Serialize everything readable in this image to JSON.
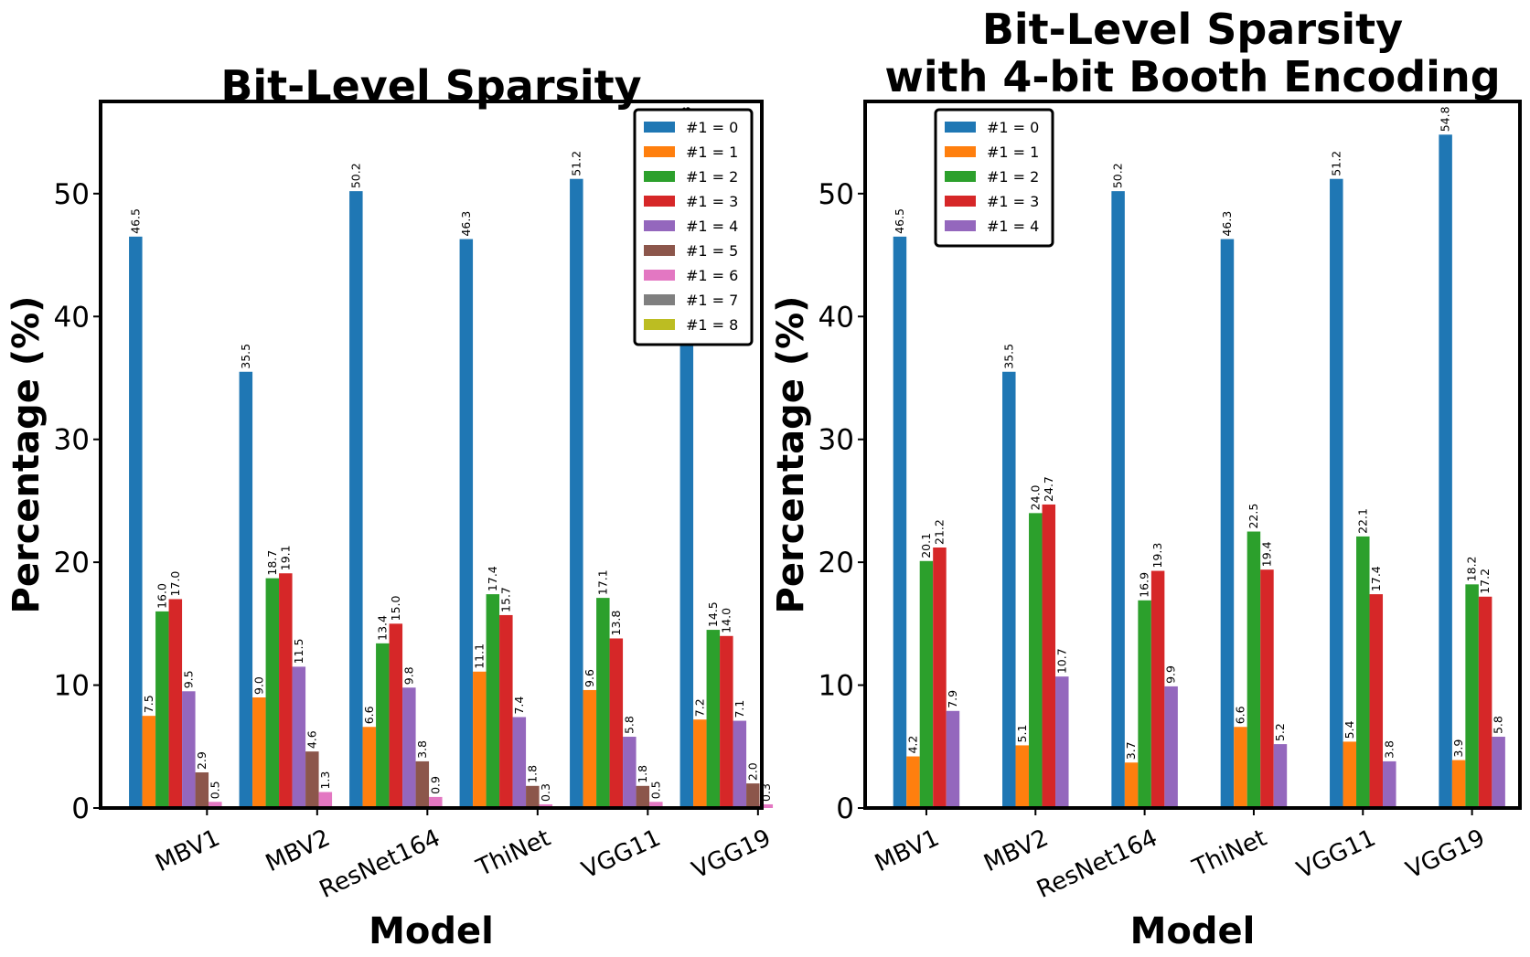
{
  "chart_data": [
    {
      "type": "bar",
      "title": [
        "Bit-Level Sparsity"
      ],
      "xlabel": "Model",
      "ylabel": "Percentage (%)",
      "ylim": [
        0,
        57.5
      ],
      "yticks": [
        0,
        10,
        20,
        30,
        40,
        50
      ],
      "grid": false,
      "legend_position": "top-right",
      "categories": [
        "MBV1",
        "MBV2",
        "ResNet164",
        "ThiNet",
        "VGG11",
        "VGG19"
      ],
      "series": [
        {
          "name": "#1 = 0",
          "color": "#1f77b4",
          "values": [
            46.5,
            35.5,
            50.2,
            46.3,
            51.2,
            54.8
          ],
          "labels": [
            "46.5",
            "35.5",
            "50.2",
            "46.3",
            "51.2",
            "54.8"
          ]
        },
        {
          "name": "#1 = 1",
          "color": "#ff7f0e",
          "values": [
            7.5,
            9.0,
            6.6,
            11.1,
            9.6,
            7.2
          ],
          "labels": [
            "7.5",
            "9.0",
            "6.6",
            "11.1",
            "9.6",
            "7.2"
          ]
        },
        {
          "name": "#1 = 2",
          "color": "#2ca02c",
          "values": [
            16.0,
            18.7,
            13.4,
            17.4,
            17.1,
            14.5
          ],
          "labels": [
            "16.0",
            "18.7",
            "13.4",
            "17.4",
            "17.1",
            "14.5"
          ]
        },
        {
          "name": "#1 = 3",
          "color": "#d62728",
          "values": [
            17.0,
            19.1,
            15.0,
            15.7,
            13.8,
            14.0
          ],
          "labels": [
            "17.0",
            "19.1",
            "15.0",
            "15.7",
            "13.8",
            "14.0"
          ]
        },
        {
          "name": "#1 = 4",
          "color": "#9467bd",
          "values": [
            9.5,
            11.5,
            9.8,
            7.4,
            5.8,
            7.1
          ],
          "labels": [
            "9.5",
            "11.5",
            "9.8",
            "7.4",
            "5.8",
            "7.1"
          ]
        },
        {
          "name": "#1 = 5",
          "color": "#8c564b",
          "values": [
            2.9,
            4.6,
            3.8,
            1.8,
            1.8,
            2.0
          ],
          "labels": [
            "2.9",
            "4.6",
            "3.8",
            "1.8",
            "1.8",
            "2.0"
          ]
        },
        {
          "name": "#1 = 6",
          "color": "#e377c2",
          "values": [
            0.5,
            1.3,
            0.9,
            0.3,
            0.5,
            0.3
          ],
          "labels": [
            "0.5",
            "1.3",
            "0.9",
            "0.3",
            "0.5",
            "0.3"
          ]
        },
        {
          "name": "#1 = 7",
          "color": "#7f7f7f",
          "values": [
            0,
            0,
            0,
            0,
            0,
            0
          ],
          "labels": [
            "",
            "",
            "",
            "",
            "",
            ""
          ]
        },
        {
          "name": "#1 = 8",
          "color": "#bcbd22",
          "values": [
            0,
            0,
            0,
            0,
            0,
            0
          ],
          "labels": [
            "",
            "",
            "",
            "",
            "",
            ""
          ]
        }
      ]
    },
    {
      "type": "bar",
      "title": [
        "Bit-Level Sparsity",
        "with 4-bit Booth Encoding"
      ],
      "xlabel": "Model",
      "ylabel": "Percentage (%)",
      "ylim": [
        0,
        57.5
      ],
      "yticks": [
        0,
        10,
        20,
        30,
        40,
        50
      ],
      "grid": false,
      "legend_position": "top-left",
      "categories": [
        "MBV1",
        "MBV2",
        "ResNet164",
        "ThiNet",
        "VGG11",
        "VGG19"
      ],
      "series": [
        {
          "name": "#1 = 0",
          "color": "#1f77b4",
          "values": [
            46.5,
            35.5,
            50.2,
            46.3,
            51.2,
            54.8
          ],
          "labels": [
            "46.5",
            "35.5",
            "50.2",
            "46.3",
            "51.2",
            "54.8"
          ]
        },
        {
          "name": "#1 = 1",
          "color": "#ff7f0e",
          "values": [
            4.2,
            5.1,
            3.7,
            6.6,
            5.4,
            3.9
          ],
          "labels": [
            "4.2",
            "5.1",
            "3.7",
            "6.6",
            "5.4",
            "3.9"
          ]
        },
        {
          "name": "#1 = 2",
          "color": "#2ca02c",
          "values": [
            20.1,
            24.0,
            16.9,
            22.5,
            22.1,
            18.2
          ],
          "labels": [
            "20.1",
            "24.0",
            "16.9",
            "22.5",
            "22.1",
            "18.2"
          ]
        },
        {
          "name": "#1 = 3",
          "color": "#d62728",
          "values": [
            21.2,
            24.7,
            19.3,
            19.4,
            17.4,
            17.2
          ],
          "labels": [
            "21.2",
            "24.7",
            "19.3",
            "19.4",
            "17.4",
            "17.2"
          ]
        },
        {
          "name": "#1 = 4",
          "color": "#9467bd",
          "values": [
            7.9,
            10.7,
            9.9,
            5.2,
            3.8,
            5.8
          ],
          "labels": [
            "7.9",
            "10.7",
            "9.9",
            "5.2",
            "3.8",
            "5.8"
          ]
        }
      ]
    }
  ]
}
